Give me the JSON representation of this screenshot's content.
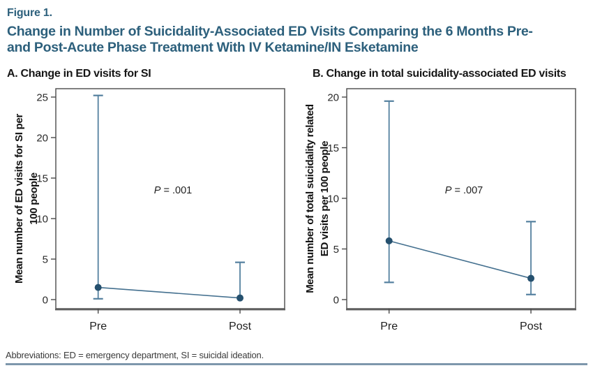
{
  "figure": {
    "label": "Figure 1.",
    "title_lines": [
      "Change in Number of Suicidality-Associated ED Visits Comparing the 6 Months Pre-",
      "and Post-Acute Phase Treatment With IV Ketamine/IN Esketamine"
    ],
    "footnote": "Abbreviations: ED = emergency department, SI = suicidal ideation."
  },
  "colors": {
    "title_blue": "#2d607c",
    "marker_navy": "#25506e",
    "errorbar_blue": "#54809f",
    "trend_blue": "#44708f",
    "axis_gray": "#4a4a4a",
    "baseline_gray": "#5f5f5f",
    "rule_blue_gray": "#7e97ac"
  },
  "chart_data": [
    {
      "type": "line",
      "panel_label": "A. Change in ED visits for SI",
      "categories": [
        "Pre",
        "Post"
      ],
      "series": [
        {
          "name": "mean-ed-visits-for-si",
          "values": [
            1.5,
            0.2
          ],
          "error_low": [
            0.1,
            0.2
          ],
          "error_high": [
            25.2,
            4.6
          ]
        }
      ],
      "ylabel_lines": [
        "Mean number of ED visits for SI per",
        "100 people"
      ],
      "yticks": [
        0,
        5,
        10,
        15,
        20,
        25
      ],
      "ylim": [
        0,
        25
      ],
      "annotation": {
        "italic": "P",
        "text": " = .001"
      },
      "grid": false,
      "legend": "none"
    },
    {
      "type": "line",
      "panel_label": "B. Change in total suicidality-associated ED visits",
      "categories": [
        "Pre",
        "Post"
      ],
      "series": [
        {
          "name": "mean-total-suicidality-ed-visits",
          "values": [
            5.8,
            2.1
          ],
          "error_low": [
            1.7,
            0.5
          ],
          "error_high": [
            19.6,
            7.7
          ]
        }
      ],
      "ylabel_lines": [
        "Mean number of total suicidality related",
        "ED visits per 100 people"
      ],
      "yticks": [
        0,
        5,
        10,
        15,
        20
      ],
      "ylim": [
        0,
        20
      ],
      "annotation": {
        "italic": "P",
        "text": " = .007"
      },
      "grid": false,
      "legend": "none"
    }
  ]
}
